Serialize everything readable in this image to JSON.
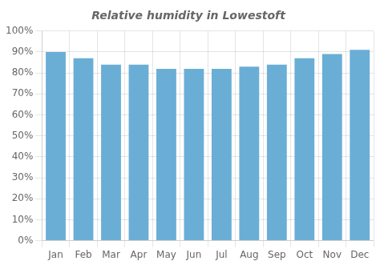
{
  "chart_data": {
    "type": "bar",
    "title": "Relative humidity in Lowestoft",
    "categories": [
      "Jan",
      "Feb",
      "Mar",
      "Apr",
      "May",
      "Jun",
      "Jul",
      "Aug",
      "Sep",
      "Oct",
      "Nov",
      "Dec"
    ],
    "values": [
      90,
      87,
      84,
      84,
      82,
      82,
      82,
      83,
      84,
      87,
      89,
      91
    ],
    "color": "#6aaed6",
    "ylim": [
      0,
      100
    ],
    "yticks": [
      {
        "value": 0,
        "label": "0%"
      },
      {
        "value": 10,
        "label": "10%"
      },
      {
        "value": 20,
        "label": "20%"
      },
      {
        "value": 30,
        "label": "30%"
      },
      {
        "value": 40,
        "label": "40%"
      },
      {
        "value": 50,
        "label": "50%"
      },
      {
        "value": 60,
        "label": "60%"
      },
      {
        "value": 70,
        "label": "70%"
      },
      {
        "value": 80,
        "label": "80%"
      },
      {
        "value": 90,
        "label": "90%"
      },
      {
        "value": 100,
        "label": "100%"
      }
    ],
    "grid": true
  }
}
